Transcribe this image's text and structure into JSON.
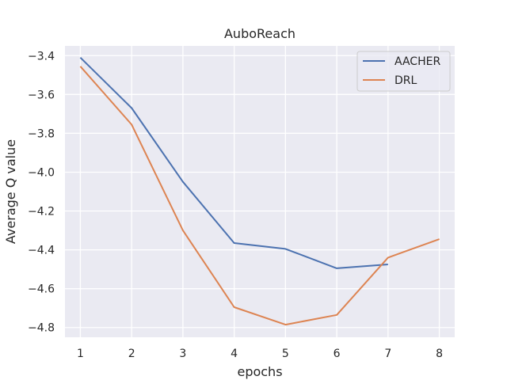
{
  "chart_data": {
    "type": "line",
    "title": "AuboReach",
    "xlabel": "epochs",
    "ylabel": "Average Q value",
    "xlim": [
      0.7,
      8.3
    ],
    "ylim": [
      -4.85,
      -3.35
    ],
    "xticks": [
      1,
      2,
      3,
      4,
      5,
      6,
      7,
      8
    ],
    "yticks": [
      -3.4,
      -3.6,
      -3.8,
      -4.0,
      -4.2,
      -4.4,
      -4.6,
      -4.8
    ],
    "ytick_labels": [
      "−3.4",
      "−3.6",
      "−3.8",
      "−4.0",
      "−4.2",
      "−4.4",
      "−4.6",
      "−4.8"
    ],
    "grid": true,
    "legend_position": "top-right",
    "series": [
      {
        "name": "AACHER",
        "color": "#4c72b0",
        "x": [
          1,
          2,
          3,
          4,
          5,
          6,
          7
        ],
        "values": [
          -3.41,
          -3.67,
          -4.05,
          -4.365,
          -4.395,
          -4.495,
          -4.475
        ]
      },
      {
        "name": "DRL",
        "color": "#dd8452",
        "x": [
          1,
          2,
          3,
          4,
          5,
          6,
          7,
          8
        ],
        "values": [
          -3.455,
          -3.755,
          -4.3,
          -4.695,
          -4.785,
          -4.735,
          -4.44,
          -4.345
        ]
      }
    ]
  }
}
